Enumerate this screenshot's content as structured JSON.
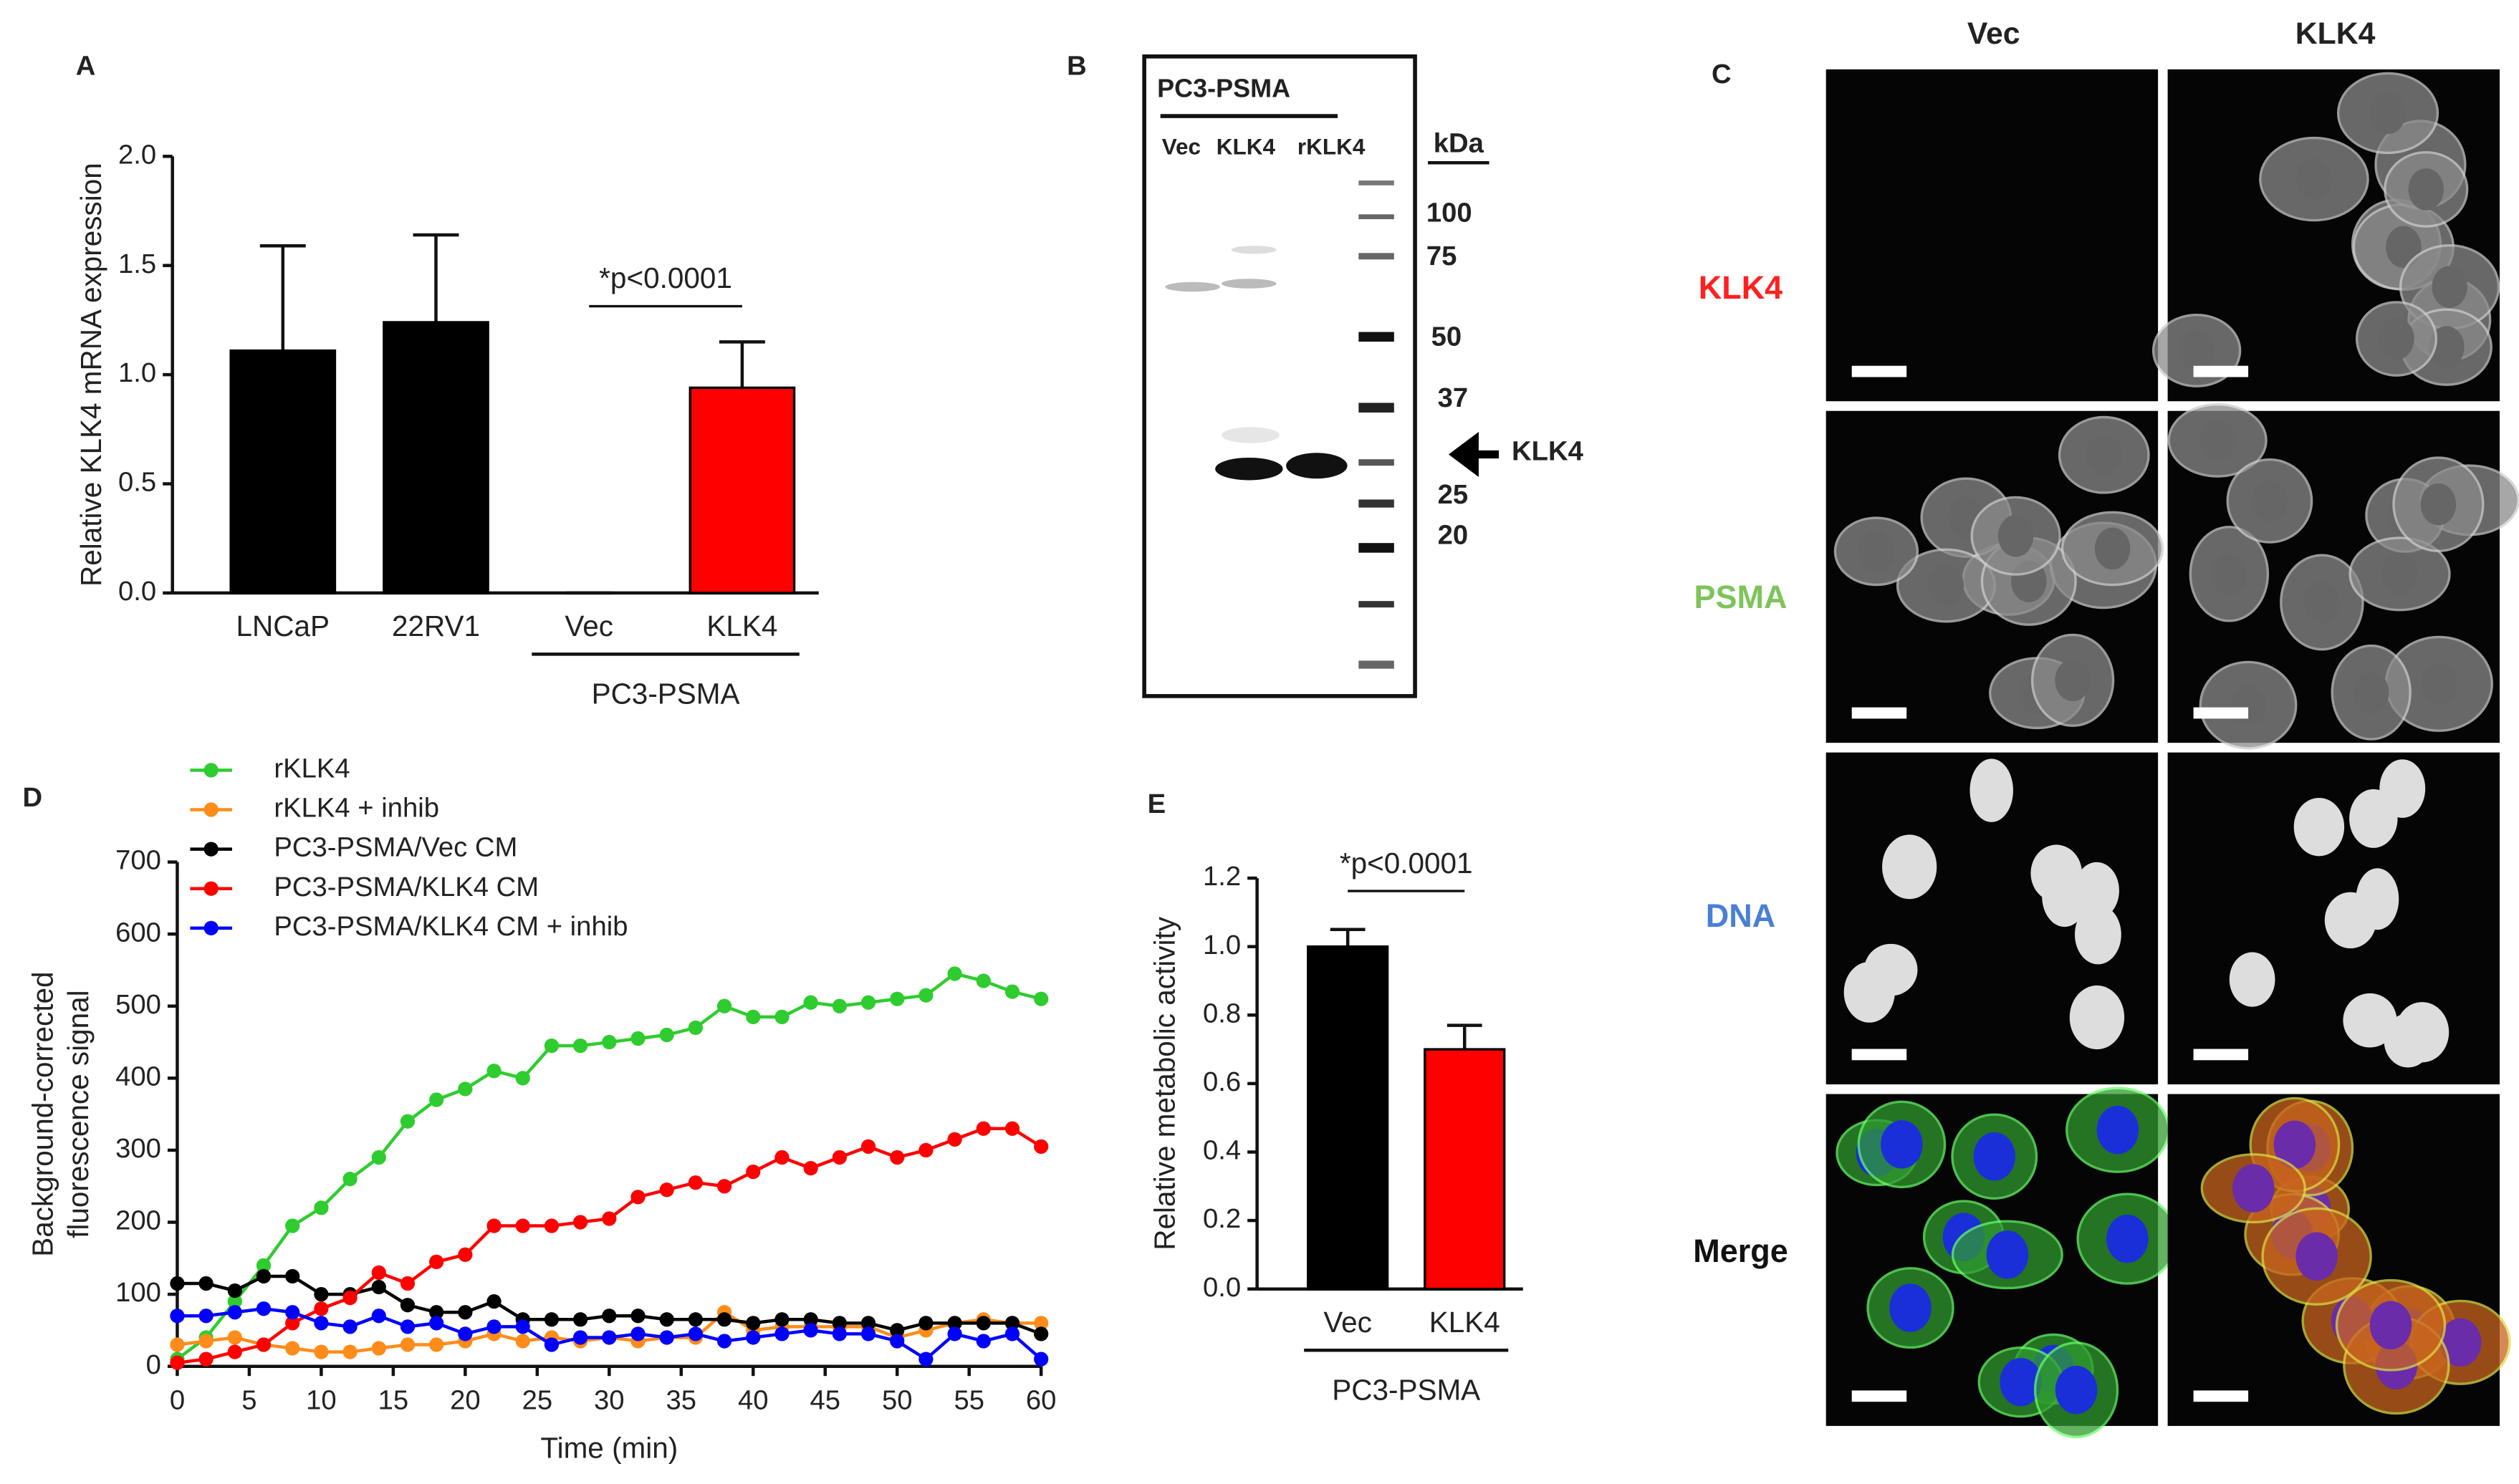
{
  "chart_data": [
    {
      "type": "bar",
      "panel_label": "A",
      "ylabel": [
        "Relative KLK4 mRNA expression"
      ],
      "categories": [
        "LNCaP",
        "22RV1",
        "Vec",
        "KLK4"
      ],
      "values": [
        1.11,
        1.24,
        0,
        0.94
      ],
      "errors": [
        0.48,
        0.4,
        0,
        0.21
      ],
      "colors": [
        "#000000",
        "#000000",
        "#000000",
        "#ff0000"
      ],
      "ylim": [
        0,
        2.0
      ],
      "yticks": [
        {
          "value": 0,
          "label": "0.0"
        },
        {
          "value": 0.5,
          "label": "0.5"
        },
        {
          "value": 1,
          "label": "1.0"
        },
        {
          "value": 1.5,
          "label": "1.5"
        },
        {
          "value": 2,
          "label": "2.0"
        }
      ],
      "annotation": "*p<0.0001",
      "group_label": "PC3-PSMA"
    },
    {
      "type": "line",
      "panel_label": "D",
      "ylabel": [
        "Background-corrected",
        "fluorescence signal"
      ],
      "xlabel": "Time (min)",
      "x": [
        0,
        2,
        4,
        6,
        8,
        10,
        12,
        14,
        16,
        18,
        20,
        22,
        24,
        26,
        28,
        30,
        32,
        34,
        36,
        38,
        40,
        42,
        44,
        46,
        48,
        50,
        52,
        54,
        56,
        58,
        60
      ],
      "series": [
        {
          "name": "rKLK4",
          "color": "#2ecc2e",
          "values": [
            10,
            40,
            90,
            140,
            195,
            220,
            260,
            290,
            340,
            370,
            385,
            410,
            400,
            445,
            445,
            450,
            455,
            460,
            470,
            500,
            485,
            485,
            505,
            500,
            505,
            510,
            515,
            545,
            535,
            520,
            510
          ]
        },
        {
          "name": "rKLK4 + inhib",
          "color": "#ff8c1a",
          "values": [
            30,
            35,
            40,
            30,
            25,
            20,
            20,
            25,
            30,
            30,
            35,
            45,
            35,
            40,
            35,
            40,
            35,
            40,
            40,
            75,
            50,
            55,
            55,
            55,
            55,
            40,
            50,
            60,
            65,
            60,
            60
          ]
        },
        {
          "name": "PC3-PSMA/Vec CM",
          "color": "#000000",
          "values": [
            115,
            115,
            105,
            125,
            125,
            100,
            100,
            110,
            85,
            75,
            75,
            90,
            65,
            65,
            65,
            70,
            70,
            65,
            65,
            65,
            60,
            65,
            65,
            60,
            60,
            50,
            60,
            60,
            60,
            60,
            45
          ]
        },
        {
          "name": "PC3-PSMA/KLK4 CM",
          "color": "#ff0000",
          "values": [
            5,
            10,
            20,
            30,
            60,
            80,
            95,
            130,
            115,
            145,
            155,
            195,
            195,
            195,
            200,
            205,
            235,
            245,
            255,
            250,
            270,
            290,
            275,
            290,
            305,
            290,
            300,
            315,
            330,
            330,
            305
          ]
        },
        {
          "name": "PC3-PSMA/KLK4 CM + inhib",
          "color": "#0000ff",
          "values": [
            70,
            70,
            75,
            80,
            75,
            60,
            55,
            70,
            55,
            60,
            45,
            55,
            55,
            30,
            40,
            40,
            45,
            40,
            45,
            35,
            40,
            45,
            50,
            45,
            45,
            35,
            10,
            45,
            35,
            45,
            10
          ]
        }
      ],
      "xlim": [
        0,
        60
      ],
      "xticks": [
        0,
        5,
        10,
        15,
        20,
        25,
        30,
        35,
        40,
        45,
        50,
        55,
        60
      ],
      "ylim": [
        0,
        700
      ],
      "yticks": [
        0,
        100,
        200,
        300,
        400,
        500,
        600,
        700
      ]
    },
    {
      "type": "bar",
      "panel_label": "E",
      "ylabel": [
        "Relative metabolic activity"
      ],
      "categories": [
        "Vec",
        "KLK4"
      ],
      "values": [
        1.0,
        0.7
      ],
      "errors": [
        0.05,
        0.07
      ],
      "colors": [
        "#000000",
        "#ff0000"
      ],
      "ylim": [
        0,
        1.2
      ],
      "yticks": [
        {
          "value": 0,
          "label": "0.0"
        },
        {
          "value": 0.2,
          "label": "0.2"
        },
        {
          "value": 0.4,
          "label": "0.4"
        },
        {
          "value": 0.6,
          "label": "0.6"
        },
        {
          "value": 0.8,
          "label": "0.8"
        },
        {
          "value": 1,
          "label": "1.0"
        },
        {
          "value": 1.2,
          "label": "1.2"
        }
      ],
      "annotation": "*p<0.0001",
      "group_label": "PC3-PSMA"
    }
  ],
  "blot": {
    "panel_label": "B",
    "title": "PC3-PSMA",
    "lanes": [
      "Vec",
      "KLK4",
      "rKLK4"
    ],
    "unit": "kDa",
    "markers": [
      "100",
      "75",
      "50",
      "37",
      "25",
      "20"
    ],
    "arrow_label": "KLK4"
  },
  "microscopy": {
    "panel_label": "C",
    "columns": [
      "Vec",
      "KLK4"
    ],
    "rows": [
      "KLK4",
      "PSMA",
      "DNA",
      "Merge"
    ]
  }
}
